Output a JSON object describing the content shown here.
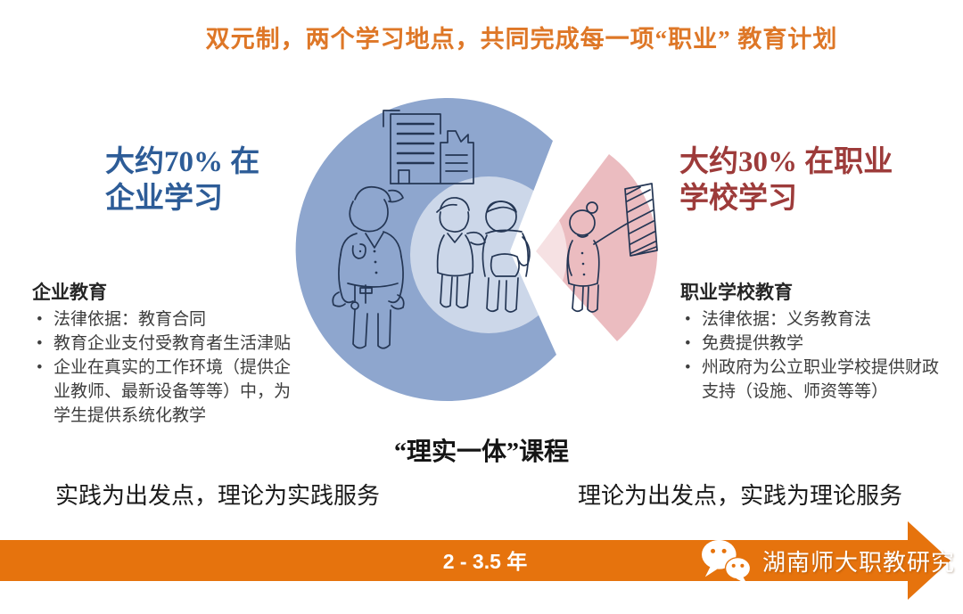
{
  "title": "双元制，两个学习地点，共同完成每一项“职业” 教育计划",
  "left": {
    "heading": "大约70% 在\n企业学习",
    "list_title": "企业教育",
    "items": [
      "法律依据：教育合同",
      "教育企业支付受教育者生活津贴",
      "企业在真实的工作环境（提供企业教师、最新设备等等）中，为学生提供系统化教学"
    ],
    "bottom_note": "实践为出发点，理论为实践服务"
  },
  "right": {
    "heading": "大约30% 在职业\n学校学习",
    "list_title": "职业学校教育",
    "items": [
      "法律依据：义务教育法",
      "免费提供教学",
      "州政府为公立职业学校提供财政支持（设施、师资等等）"
    ],
    "bottom_note": "理论为出发点，实践为理论服务"
  },
  "center": {
    "caption": "“理实一体”课程"
  },
  "pie": {
    "type": "pie",
    "slices": [
      {
        "label": "企业学习",
        "value": 70,
        "color": "#8EA6CE"
      },
      {
        "label": "职业学校学习",
        "value": 30,
        "color": "#EBBCC0"
      }
    ]
  },
  "timeline": {
    "duration_value": "2 - 3.5",
    "duration_unit": "年"
  },
  "watermark": {
    "icon": "wechat",
    "text": "湖南师大职教研究"
  },
  "colors": {
    "title_orange": "#DE7727",
    "arrow_orange": "#E6730D",
    "company_blue": "#2D5C97",
    "school_red": "#9D3B3A",
    "pie_blue": "#8EA6CE",
    "pie_pink": "#EBBCC0",
    "inner_highlight": "#FFFFFF",
    "sketch_ink": "#243654"
  }
}
